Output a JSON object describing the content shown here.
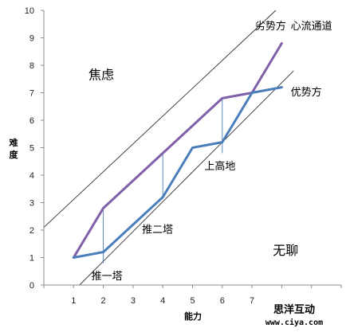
{
  "chart_data": {
    "type": "line",
    "xlabel": "能力",
    "ylabel": "难度",
    "xlim": [
      0,
      10
    ],
    "ylim": [
      0,
      10
    ],
    "x_ticks": [
      "1",
      "2",
      "3",
      "4",
      "5",
      "6",
      "7"
    ],
    "y_ticks": [
      "0",
      "1",
      "2",
      "3",
      "4",
      "5",
      "6",
      "7",
      "8",
      "9",
      "10"
    ],
    "grid": false,
    "series": [
      {
        "color": "#8060a8",
        "x": [
          1,
          2,
          4,
          6,
          7,
          8
        ],
        "y": [
          1,
          2.8,
          4.8,
          6.8,
          7,
          8.8
        ]
      },
      {
        "color": "#4a7ebb",
        "x": [
          1,
          2,
          4,
          5,
          6,
          7,
          8
        ],
        "y": [
          1,
          1.2,
          3.2,
          5,
          5.2,
          7,
          7.2
        ]
      }
    ],
    "boundaries": [
      {
        "color": "#333333",
        "x": [
          0,
          7.8
        ],
        "y": [
          2.1,
          10
        ]
      },
      {
        "color": "#333333",
        "x": [
          1.2,
          8.4
        ],
        "y": [
          0,
          7.8
        ]
      }
    ],
    "markers": [
      {
        "color": "#4a7ebb",
        "x": 2,
        "y_from": 0.8,
        "y_to": 2.8
      },
      {
        "color": "#4a7ebb",
        "x": 4,
        "y_from": 3.2,
        "y_to": 4.8
      },
      {
        "color": "#4a7ebb",
        "x": 6,
        "y_from": 4.8,
        "y_to": 6.8
      }
    ],
    "regions": [
      {
        "text": "焦虑",
        "x": 1.5,
        "y": 7.5
      },
      {
        "text": "无聊",
        "x": 7.7,
        "y": 1.1
      }
    ],
    "annotations": [
      {
        "text": "推一塔",
        "x": 1.6,
        "y": 0.2
      },
      {
        "text": "推二塔",
        "x": 3.3,
        "y": 1.9
      },
      {
        "text": "上高地",
        "x": 5.4,
        "y": 4.2
      },
      {
        "text": "劣势方",
        "x": 7.1,
        "y": 9.3
      },
      {
        "text": "心流通道",
        "x": 8.3,
        "y": 9.3
      },
      {
        "text": "优势方",
        "x": 8.3,
        "y": 6.9
      }
    ]
  },
  "watermark": {
    "brand": "思洋互动",
    "site": "www.ciya.com"
  }
}
